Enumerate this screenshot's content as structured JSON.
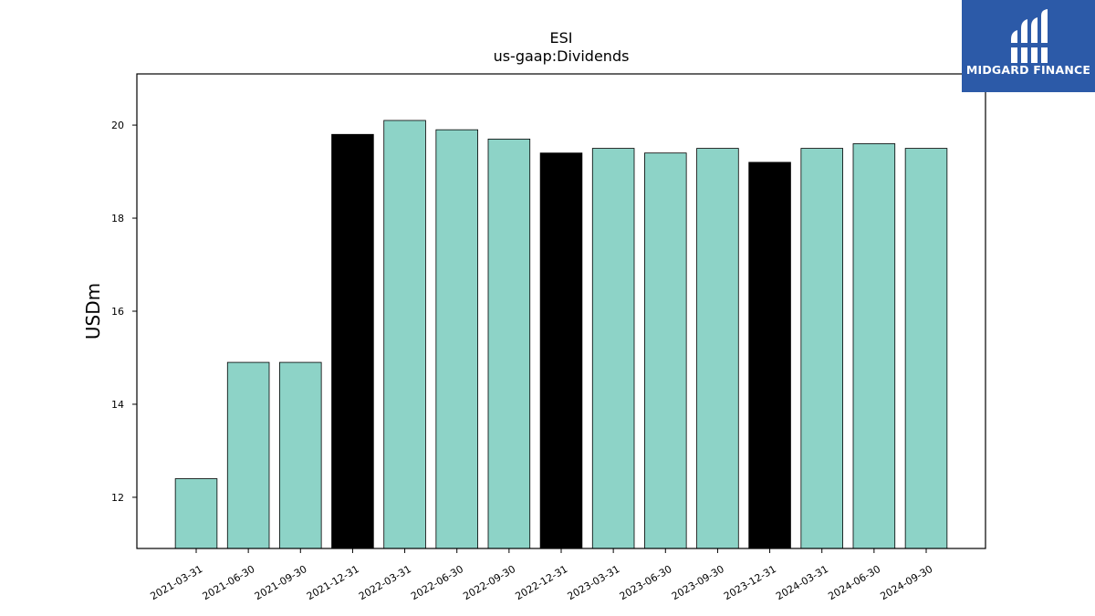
{
  "chart_data": {
    "type": "bar",
    "title": "ESI",
    "subtitle": "us-gaap:Dividends",
    "xlabel": "",
    "ylabel": "USDm",
    "ylim": [
      10.9,
      21.1
    ],
    "yticks": [
      12,
      14,
      16,
      18,
      20
    ],
    "grid": false,
    "categories": [
      "2021-03-31",
      "2021-06-30",
      "2021-09-30",
      "2021-12-31",
      "2022-03-31",
      "2022-06-30",
      "2022-09-30",
      "2022-12-31",
      "2023-03-31",
      "2023-06-30",
      "2023-09-30",
      "2023-12-31",
      "2024-03-31",
      "2024-06-30",
      "2024-09-30"
    ],
    "values": [
      12.4,
      14.9,
      14.9,
      19.8,
      20.1,
      19.9,
      19.7,
      19.4,
      19.5,
      19.4,
      19.5,
      19.2,
      19.5,
      19.6,
      19.5
    ],
    "bar_colors": [
      "#8dd3c7",
      "#8dd3c7",
      "#8dd3c7",
      "#000000",
      "#8dd3c7",
      "#8dd3c7",
      "#8dd3c7",
      "#000000",
      "#8dd3c7",
      "#8dd3c7",
      "#8dd3c7",
      "#000000",
      "#8dd3c7",
      "#8dd3c7",
      "#8dd3c7"
    ]
  },
  "logo": {
    "text": "MIDGARD FINANCE",
    "color": "#2c5aa8",
    "icon": "midgard-logo-icon"
  }
}
